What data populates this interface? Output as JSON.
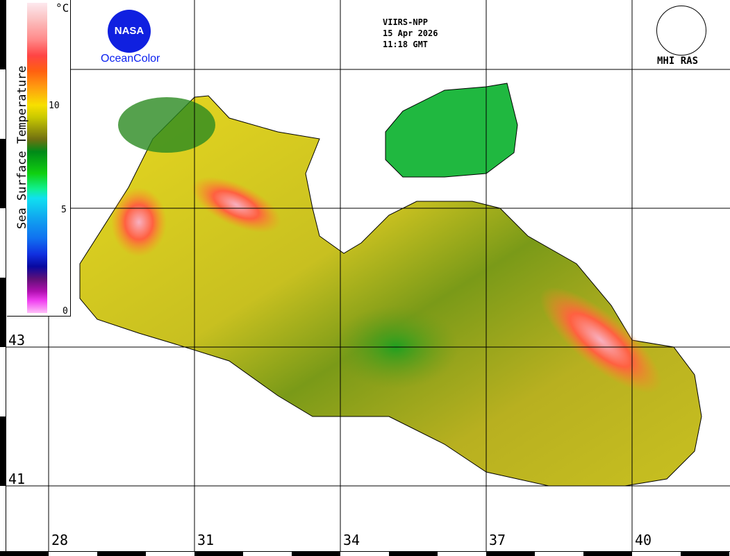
{
  "legend": {
    "title": "Sea Surface Temperature",
    "unit": "°C",
    "ticks": [
      "10",
      "5",
      "0"
    ],
    "range": [
      0,
      15
    ]
  },
  "info": {
    "sensor": "VIIRS-NPP",
    "date": "15 Apr 2026",
    "time": "11:18 GMT"
  },
  "logos": {
    "nasa": "NASA",
    "oceancolor": "OceanColor",
    "mhi": "MHI RAS"
  },
  "latitudes": [
    "43",
    "41"
  ],
  "longitudes": [
    "28",
    "31",
    "34",
    "37",
    "40"
  ]
}
